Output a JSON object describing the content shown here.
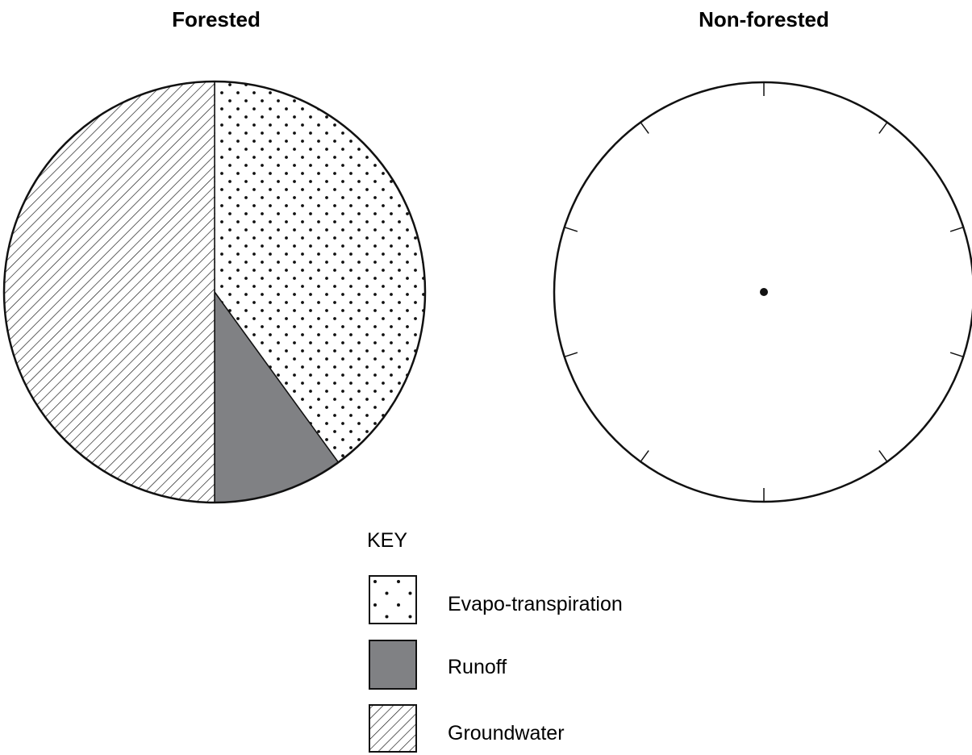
{
  "chart_data": [
    {
      "type": "pie",
      "title": "Forested",
      "start_angle_deg": 0,
      "direction": "clockwise",
      "categories": [
        "Evapo-transpiration",
        "Runoff",
        "Groundwater"
      ],
      "values": [
        40,
        10,
        50
      ],
      "unit": "%"
    },
    {
      "type": "pie",
      "title": "Non-forested",
      "categories": [],
      "values": [],
      "tick_interval_percent": 10,
      "blank": true
    }
  ],
  "legend": {
    "title": "KEY",
    "entries": [
      {
        "label": "Evapo-transpiration",
        "pattern": "dots"
      },
      {
        "label": "Runoff",
        "pattern": "solid-gray",
        "color": "#808184"
      },
      {
        "label": "Groundwater",
        "pattern": "diagonal-hatch"
      }
    ]
  },
  "colors": {
    "stroke": "#111111",
    "runoff_fill": "#808184",
    "background": "#ffffff"
  }
}
